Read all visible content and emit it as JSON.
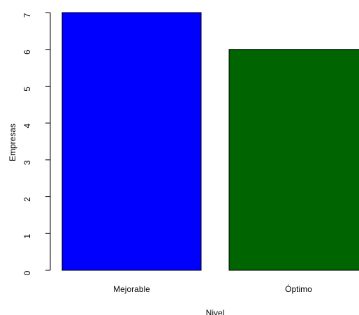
{
  "chart_data": {
    "type": "bar",
    "categories": [
      "Mejorable",
      "Óptimo"
    ],
    "values": [
      7,
      6
    ],
    "colors": [
      "#0000ff",
      "#006400"
    ],
    "xlabel": "Nivel",
    "ylabel": "Empresas",
    "ylim": [
      0,
      7
    ],
    "yticks": [
      0,
      1,
      2,
      3,
      4,
      5,
      6,
      7
    ],
    "grid": false,
    "legend": "none"
  }
}
